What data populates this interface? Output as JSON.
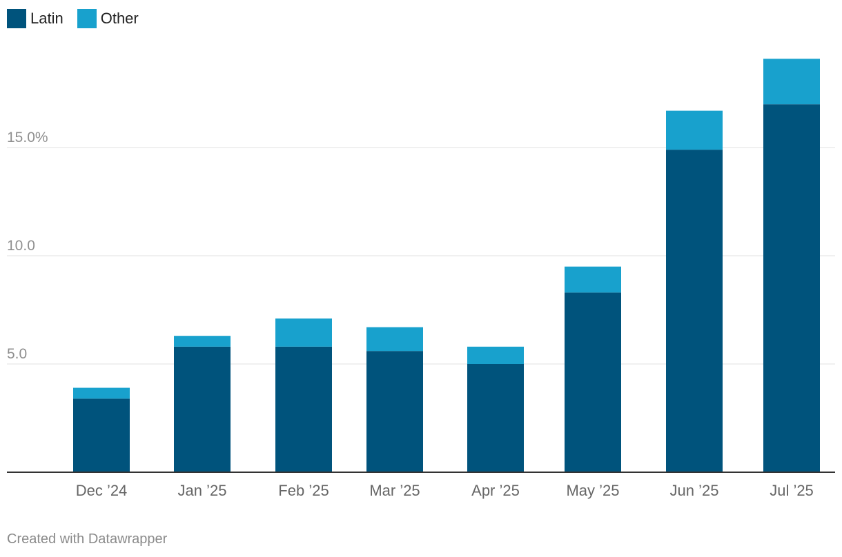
{
  "chart_data": {
    "type": "bar",
    "stacked": true,
    "categories": [
      "Dec ’24",
      "Jan ’25",
      "Feb ’25",
      "Mar ’25",
      "Apr ’25",
      "May ’25",
      "Jun ’25",
      "Jul ’25"
    ],
    "series": [
      {
        "name": "Latin",
        "color": "#00537c",
        "values": [
          3.4,
          5.8,
          5.8,
          5.6,
          5.0,
          8.3,
          14.9,
          17.0
        ]
      },
      {
        "name": "Other",
        "color": "#18a1cd",
        "values": [
          0.5,
          0.5,
          1.3,
          1.1,
          0.8,
          1.2,
          1.8,
          2.1
        ]
      }
    ],
    "yticks": [
      {
        "value": 5,
        "label": "5.0"
      },
      {
        "value": 10,
        "label": "10.0"
      },
      {
        "value": 15,
        "label": "15.0%"
      }
    ],
    "ylim": [
      0,
      20
    ],
    "grid": true,
    "legend": "top-left",
    "title": "",
    "xlabel": "",
    "ylabel": ""
  },
  "footer": {
    "credit": "Created with Datawrapper"
  }
}
